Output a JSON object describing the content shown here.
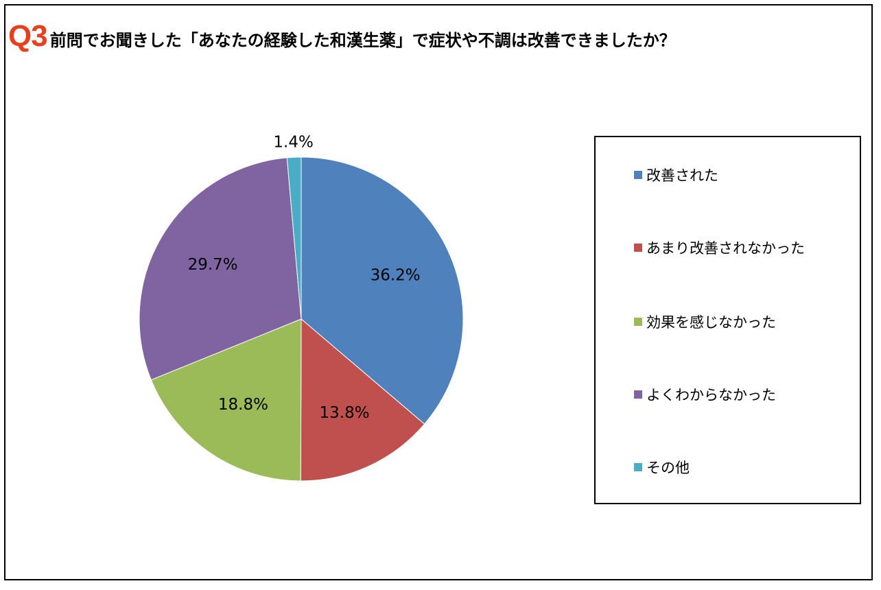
{
  "header": {
    "q_number": "Q3",
    "question": "前問でお聞きした「あなたの経験した和漢生薬」で症状や不調は改善できましたか？",
    "q_color": "#e8401c"
  },
  "chart_data": {
    "type": "pie",
    "title": "",
    "legend_position": "right",
    "slices": [
      {
        "label": "改善された",
        "value": 36.2,
        "display": "36.2%",
        "color": "#4f81bd"
      },
      {
        "label": "あまり改善されなかった",
        "value": 13.8,
        "display": "13.8%",
        "color": "#c0504d"
      },
      {
        "label": "効果を感じなかった",
        "value": 18.8,
        "display": "18.8%",
        "color": "#9bbb59"
      },
      {
        "label": "よくわからなかった",
        "value": 29.7,
        "display": "29.7%",
        "color": "#8064a2"
      },
      {
        "label": "その他",
        "value": 1.4,
        "display": "1.4%",
        "color": "#4bacc6"
      }
    ]
  }
}
